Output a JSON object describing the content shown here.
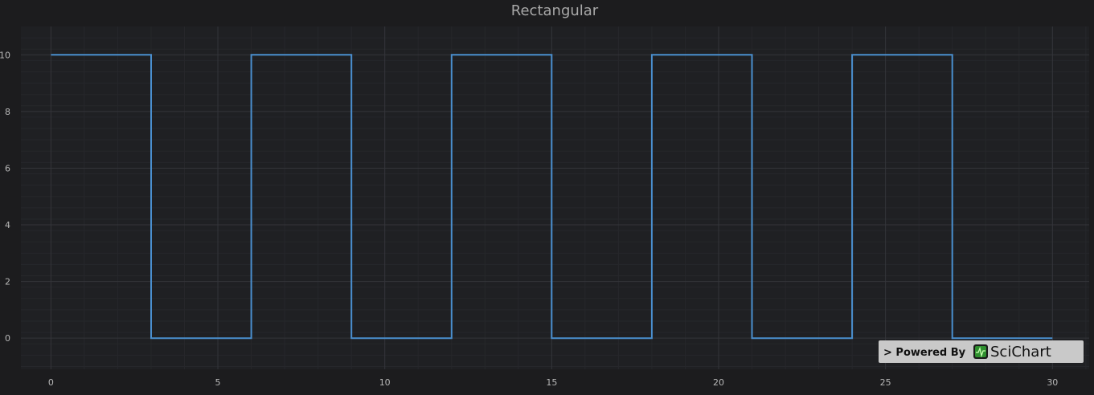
{
  "chart_data": {
    "type": "line",
    "title": "Rectangular",
    "xlabel": "",
    "ylabel": "",
    "xlim": [
      -0.9,
      31.1
    ],
    "ylim": [
      -1.1,
      11
    ],
    "x_ticks": [
      0,
      5,
      10,
      15,
      20,
      25,
      30
    ],
    "y_ticks": [
      0,
      2,
      4,
      6,
      8,
      10
    ],
    "grid": true,
    "series": [
      {
        "color": "#4a8fcf",
        "x": [
          0,
          3,
          3,
          3,
          6,
          6,
          9,
          9,
          9,
          12,
          12,
          15,
          15,
          15,
          18,
          18,
          21,
          21,
          21,
          24,
          24,
          24,
          27,
          27,
          30
        ],
        "y": [
          10,
          10,
          5,
          0,
          0,
          10,
          10,
          5,
          0,
          0,
          10,
          10,
          5,
          0,
          0,
          10,
          10,
          5,
          0,
          0,
          5,
          10,
          10,
          0,
          0
        ]
      }
    ]
  },
  "colors": {
    "background": "#1c1c1e",
    "plot_background": "#1f2023",
    "major_grid": "#34353a",
    "minor_grid": "#26272b",
    "line": "#4a8fcf",
    "badge_background": "#c9c9c9"
  },
  "watermark": {
    "prefix": "> Powered By",
    "brand": "SciChart",
    "icon": "scichart-logo-icon"
  }
}
